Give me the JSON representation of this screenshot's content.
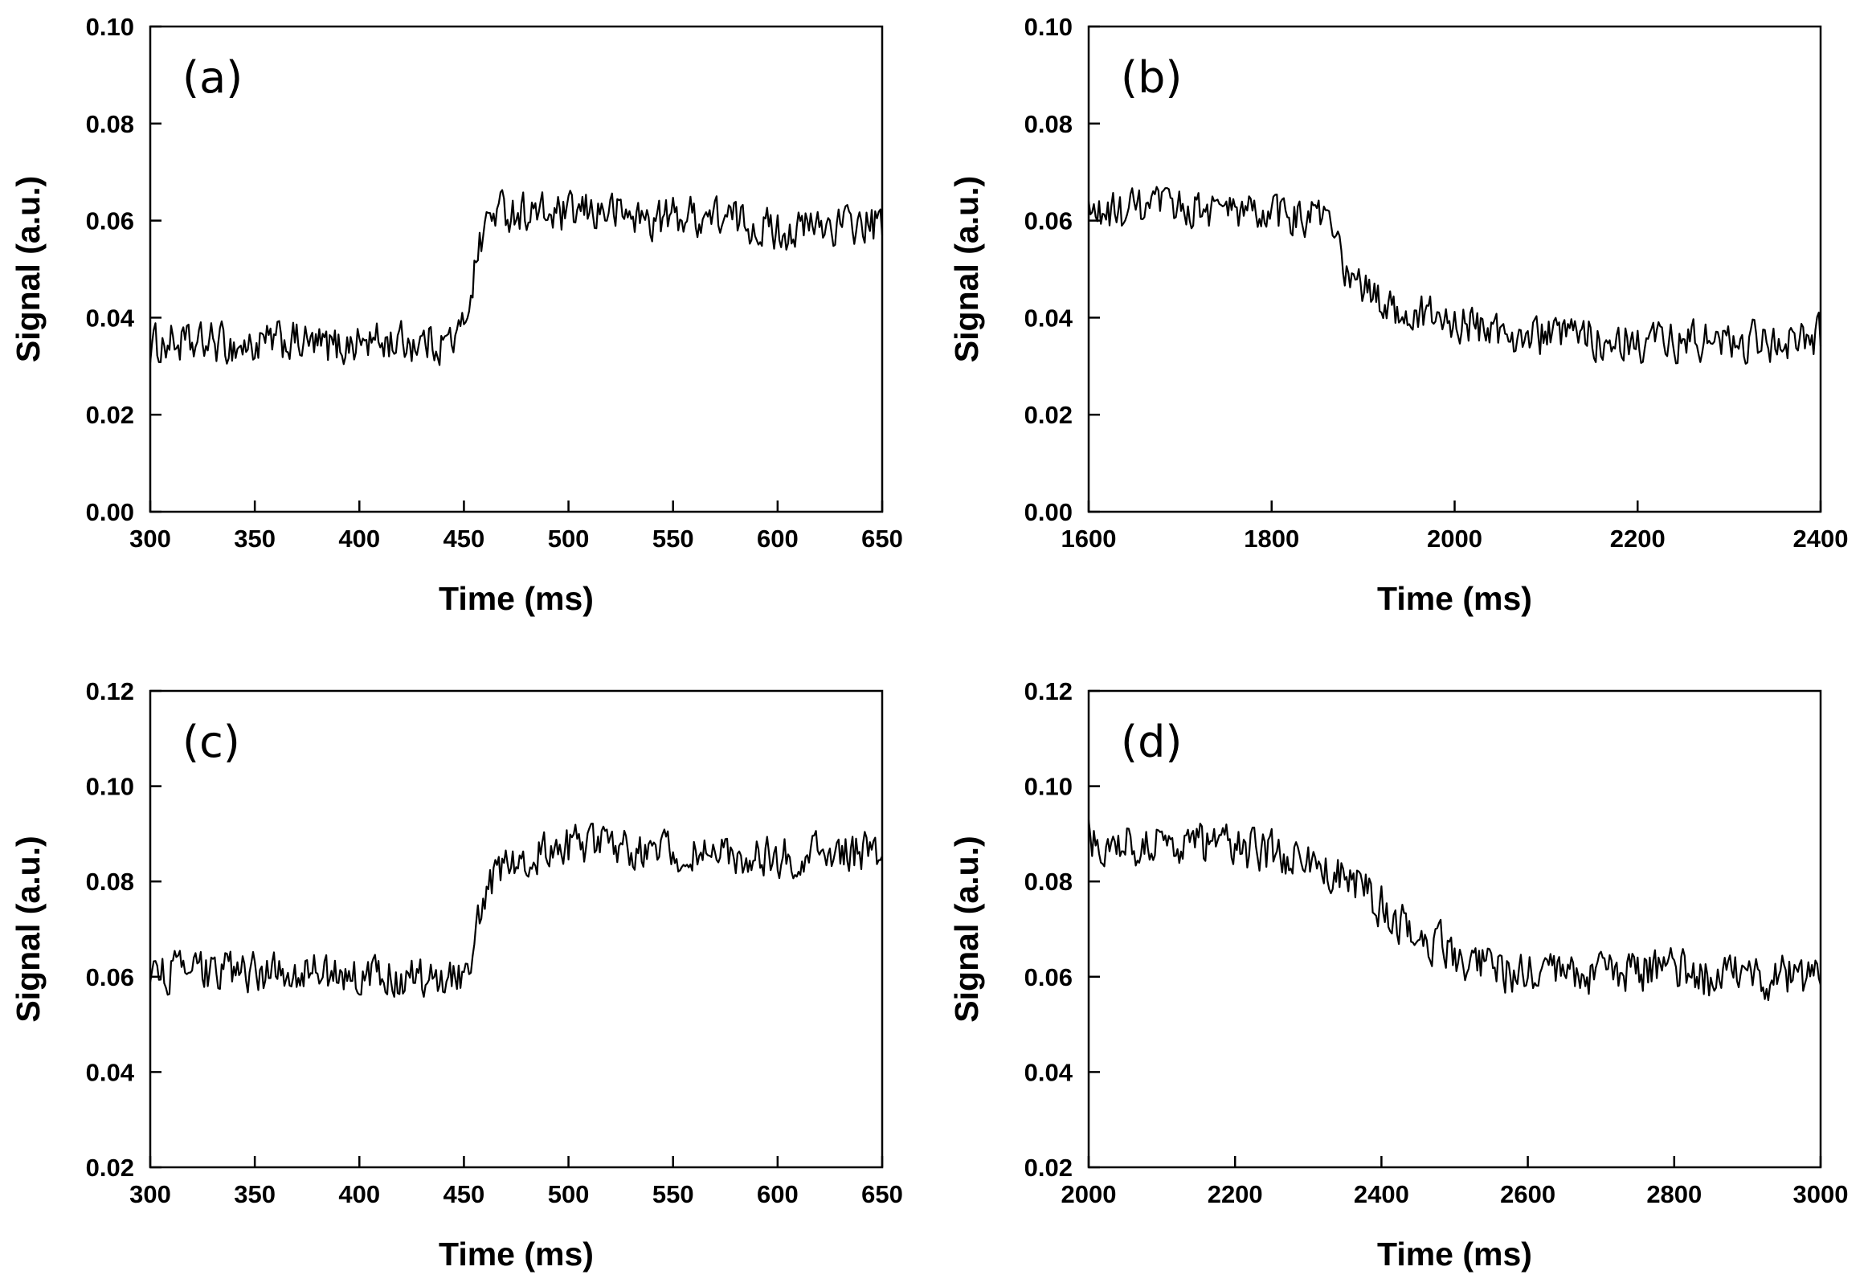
{
  "chart_data": [
    {
      "type": "line",
      "panel_label": "(a)",
      "xlabel": "Time (ms)",
      "ylabel": "Signal (a.u.)",
      "xlim": [
        300,
        650
      ],
      "ylim": [
        0.0,
        0.1
      ],
      "xticks": [
        300,
        350,
        400,
        450,
        500,
        550,
        600,
        650
      ],
      "xtick_labels": [
        "300",
        "350",
        "400",
        "450",
        "500",
        "550",
        "600",
        "650"
      ],
      "yticks": [
        0.0,
        0.02,
        0.04,
        0.06,
        0.08,
        0.1
      ],
      "ytick_labels": [
        "0.00",
        "0.02",
        "0.04",
        "0.06",
        "0.08",
        "0.10"
      ],
      "series": [
        {
          "name": "signal",
          "x": [
            300,
            310,
            320,
            330,
            340,
            350,
            360,
            370,
            380,
            390,
            400,
            410,
            420,
            430,
            440,
            448,
            452,
            456,
            460,
            465,
            470,
            480,
            490,
            500,
            510,
            520,
            530,
            540,
            550,
            560,
            570,
            580,
            590,
            600,
            610,
            620,
            630,
            640,
            650
          ],
          "y": [
            0.034,
            0.035,
            0.034,
            0.035,
            0.034,
            0.034,
            0.035,
            0.035,
            0.034,
            0.034,
            0.035,
            0.035,
            0.035,
            0.035,
            0.035,
            0.036,
            0.043,
            0.052,
            0.059,
            0.062,
            0.062,
            0.062,
            0.061,
            0.061,
            0.062,
            0.062,
            0.061,
            0.06,
            0.061,
            0.061,
            0.061,
            0.06,
            0.059,
            0.058,
            0.058,
            0.059,
            0.059,
            0.059,
            0.059
          ],
          "noise_amplitude": 0.0055
        }
      ]
    },
    {
      "type": "line",
      "panel_label": "(b)",
      "xlabel": "Time (ms)",
      "ylabel": "Signal (a.u.)",
      "xlim": [
        1600,
        2400
      ],
      "ylim": [
        0.0,
        0.1
      ],
      "xticks": [
        1600,
        1800,
        2000,
        2200,
        2400
      ],
      "xtick_labels": [
        "1600",
        "1800",
        "2000",
        "2200",
        "2400"
      ],
      "yticks": [
        0.0,
        0.02,
        0.04,
        0.06,
        0.08,
        0.1
      ],
      "ytick_labels": [
        "0.00",
        "0.02",
        "0.04",
        "0.06",
        "0.08",
        "0.10"
      ],
      "series": [
        {
          "name": "signal",
          "x": [
            1600,
            1650,
            1700,
            1750,
            1800,
            1840,
            1860,
            1870,
            1880,
            1900,
            1920,
            1950,
            2000,
            2050,
            2100,
            2150,
            2200,
            2250,
            2300,
            2350,
            2400
          ],
          "y": [
            0.061,
            0.062,
            0.063,
            0.062,
            0.061,
            0.061,
            0.06,
            0.055,
            0.05,
            0.046,
            0.043,
            0.041,
            0.039,
            0.037,
            0.036,
            0.036,
            0.035,
            0.035,
            0.035,
            0.035,
            0.036
          ],
          "noise_amplitude": 0.0055
        }
      ]
    },
    {
      "type": "line",
      "panel_label": "(c)",
      "xlabel": "Time (ms)",
      "ylabel": "Signal (a.u.)",
      "xlim": [
        300,
        650
      ],
      "ylim": [
        0.02,
        0.12
      ],
      "xticks": [
        300,
        350,
        400,
        450,
        500,
        550,
        600,
        650
      ],
      "xtick_labels": [
        "300",
        "350",
        "400",
        "450",
        "500",
        "550",
        "600",
        "650"
      ],
      "yticks": [
        0.02,
        0.04,
        0.06,
        0.08,
        0.1,
        0.12
      ],
      "ytick_labels": [
        "0.02",
        "0.04",
        "0.06",
        "0.08",
        "0.10",
        "0.12"
      ],
      "series": [
        {
          "name": "signal",
          "x": [
            300,
            320,
            340,
            360,
            380,
            400,
            420,
            440,
            450,
            455,
            460,
            465,
            470,
            480,
            490,
            500,
            510,
            520,
            530,
            540,
            550,
            560,
            570,
            580,
            600,
            620,
            640,
            650
          ],
          "y": [
            0.061,
            0.061,
            0.061,
            0.061,
            0.061,
            0.06,
            0.06,
            0.06,
            0.061,
            0.068,
            0.076,
            0.081,
            0.084,
            0.086,
            0.086,
            0.087,
            0.088,
            0.088,
            0.087,
            0.087,
            0.086,
            0.086,
            0.085,
            0.085,
            0.085,
            0.086,
            0.086,
            0.086
          ],
          "noise_amplitude": 0.0055
        }
      ]
    },
    {
      "type": "line",
      "panel_label": "(d)",
      "xlabel": "Time (ms)",
      "ylabel": "Signal (a.u.)",
      "xlim": [
        2000,
        3000
      ],
      "ylim": [
        0.02,
        0.12
      ],
      "xticks": [
        2000,
        2200,
        2400,
        2600,
        2800,
        3000
      ],
      "xtick_labels": [
        "2000",
        "2200",
        "2400",
        "2600",
        "2800",
        "3000"
      ],
      "yticks": [
        0.02,
        0.04,
        0.06,
        0.08,
        0.1,
        0.12
      ],
      "ytick_labels": [
        "0.02",
        "0.04",
        "0.06",
        "0.08",
        "0.10",
        "0.12"
      ],
      "series": [
        {
          "name": "signal",
          "x": [
            2000,
            2050,
            2100,
            2150,
            2200,
            2250,
            2300,
            2350,
            2400,
            2450,
            2500,
            2550,
            2600,
            2650,
            2700,
            2750,
            2800,
            2850,
            2900,
            2950,
            3000
          ],
          "y": [
            0.089,
            0.088,
            0.088,
            0.088,
            0.087,
            0.086,
            0.084,
            0.081,
            0.075,
            0.069,
            0.065,
            0.062,
            0.06,
            0.06,
            0.061,
            0.061,
            0.061,
            0.06,
            0.06,
            0.06,
            0.06
          ],
          "noise_amplitude": 0.006
        }
      ]
    }
  ]
}
